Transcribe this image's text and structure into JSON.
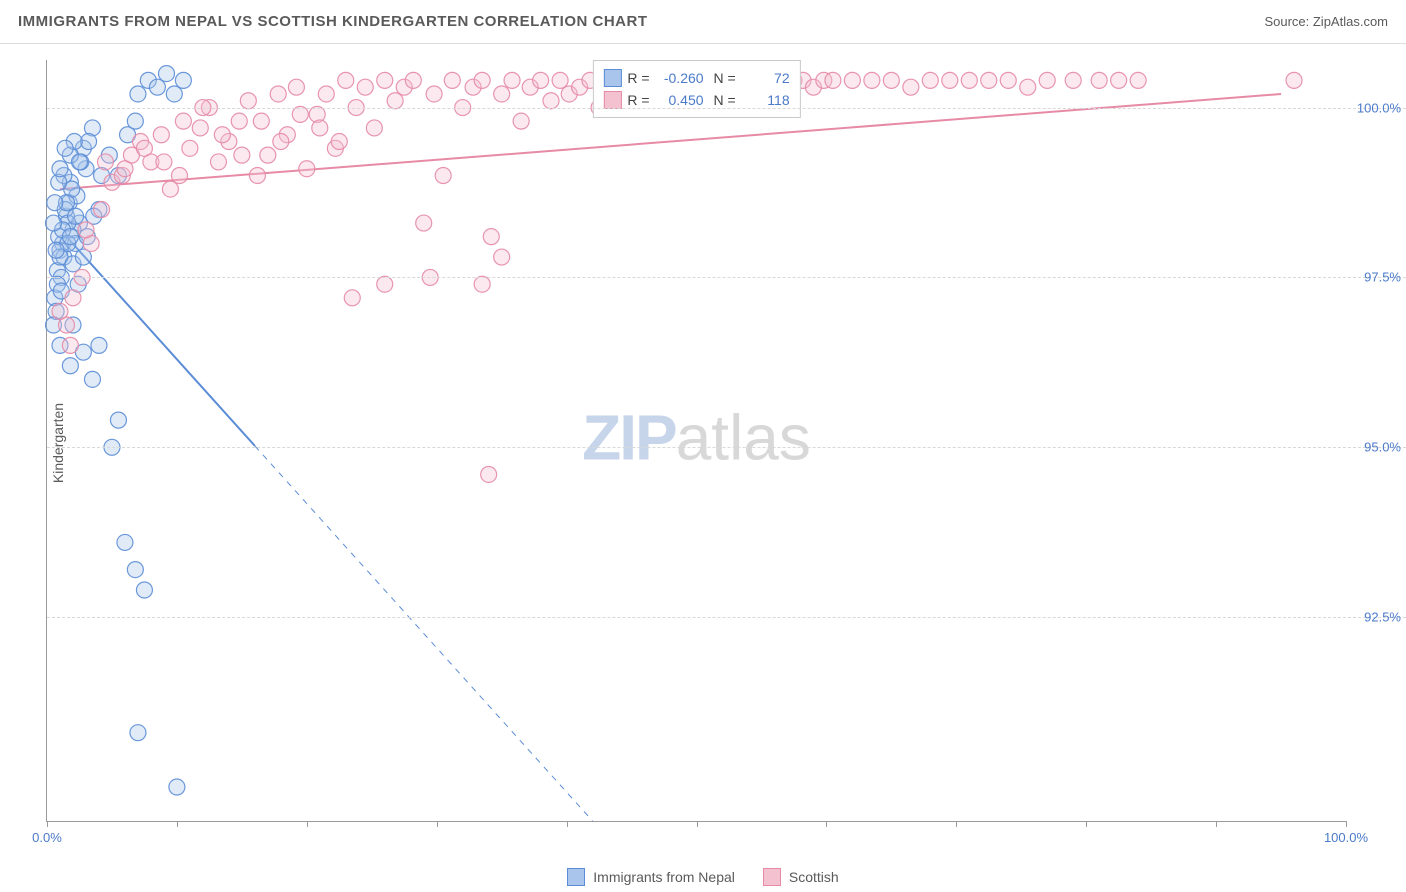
{
  "header": {
    "title": "IMMIGRANTS FROM NEPAL VS SCOTTISH KINDERGARTEN CORRELATION CHART",
    "source_label": "Source: ZipAtlas.com"
  },
  "watermark": {
    "zip": "ZIP",
    "atlas": "atlas"
  },
  "chart": {
    "type": "scatter",
    "background_color": "#ffffff",
    "grid_color": "#d8d8d8",
    "axis_color": "#9a9a9a",
    "tick_label_color": "#4a7ac8",
    "axis_title_color": "#5a5a5a",
    "y_axis_title": "Kindergarten",
    "xlim": [
      0,
      100
    ],
    "ylim": [
      89.5,
      100.7
    ],
    "x_ticks": [
      0,
      10,
      20,
      30,
      40,
      50,
      60,
      70,
      80,
      90,
      100
    ],
    "x_tick_labels": {
      "0": "0.0%",
      "100": "100.0%"
    },
    "y_gridlines": [
      92.5,
      95.0,
      97.5,
      100.0
    ],
    "y_tick_labels": [
      "92.5%",
      "95.0%",
      "97.5%",
      "100.0%"
    ],
    "marker_radius": 8,
    "marker_fill_opacity": 0.35,
    "marker_stroke_opacity": 0.9,
    "marker_stroke_width": 1.2,
    "trend_line_width": 2,
    "trend_dash": "6 6",
    "series": {
      "nepal": {
        "label": "Immigrants from Nepal",
        "color": "#5b8dd6",
        "fill": "#a9c5ec",
        "R": "-0.260",
        "N": "72",
        "trend": {
          "x1": 1.5,
          "y1": 98.1,
          "x2": 42,
          "y2": 89.5,
          "solid_until_x": 16
        },
        "points": [
          [
            1.2,
            98.0
          ],
          [
            1.5,
            98.4
          ],
          [
            1.0,
            97.9
          ],
          [
            2.5,
            98.3
          ],
          [
            0.8,
            97.6
          ],
          [
            1.7,
            98.6
          ],
          [
            1.3,
            97.8
          ],
          [
            2.0,
            98.2
          ],
          [
            0.9,
            98.1
          ],
          [
            1.8,
            98.9
          ],
          [
            3.0,
            99.1
          ],
          [
            2.2,
            98.0
          ],
          [
            0.6,
            97.2
          ],
          [
            1.4,
            98.5
          ],
          [
            2.8,
            99.4
          ],
          [
            3.5,
            99.7
          ],
          [
            4.2,
            99.0
          ],
          [
            1.1,
            97.5
          ],
          [
            1.6,
            98.3
          ],
          [
            2.3,
            98.7
          ],
          [
            0.7,
            97.0
          ],
          [
            1.9,
            98.8
          ],
          [
            2.6,
            99.2
          ],
          [
            3.2,
            99.5
          ],
          [
            4.0,
            98.5
          ],
          [
            4.8,
            99.3
          ],
          [
            5.5,
            99.0
          ],
          [
            6.2,
            99.6
          ],
          [
            7.0,
            100.2
          ],
          [
            7.8,
            100.4
          ],
          [
            8.5,
            100.3
          ],
          [
            9.2,
            100.5
          ],
          [
            9.8,
            100.2
          ],
          [
            10.5,
            100.4
          ],
          [
            6.8,
            99.8
          ],
          [
            2.0,
            96.8
          ],
          [
            2.8,
            96.4
          ],
          [
            3.5,
            96.0
          ],
          [
            1.0,
            96.5
          ],
          [
            1.8,
            96.2
          ],
          [
            5.0,
            95.0
          ],
          [
            5.5,
            95.4
          ],
          [
            4.0,
            96.5
          ],
          [
            6.0,
            93.6
          ],
          [
            6.8,
            93.2
          ],
          [
            7.5,
            92.9
          ],
          [
            7.0,
            90.8
          ],
          [
            10.0,
            90.0
          ],
          [
            0.5,
            96.8
          ],
          [
            0.8,
            97.4
          ],
          [
            1.2,
            98.2
          ],
          [
            1.5,
            98.6
          ],
          [
            1.0,
            97.8
          ],
          [
            1.3,
            99.0
          ],
          [
            1.8,
            99.3
          ],
          [
            2.1,
            99.5
          ],
          [
            2.5,
            99.2
          ],
          [
            0.9,
            98.9
          ],
          [
            1.6,
            98.0
          ],
          [
            2.0,
            97.7
          ],
          [
            1.1,
            97.3
          ],
          [
            0.7,
            97.9
          ],
          [
            2.4,
            97.4
          ],
          [
            2.8,
            97.8
          ],
          [
            3.1,
            98.1
          ],
          [
            3.6,
            98.4
          ],
          [
            0.5,
            98.3
          ],
          [
            0.6,
            98.6
          ],
          [
            1.0,
            99.1
          ],
          [
            1.4,
            99.4
          ],
          [
            1.8,
            98.1
          ],
          [
            2.2,
            98.4
          ]
        ]
      },
      "scottish": {
        "label": "Scottish",
        "color": "#e68aa6",
        "fill": "#f4c1d1",
        "R": "0.450",
        "N": "118",
        "trend": {
          "x1": 1,
          "y1": 98.8,
          "x2": 95,
          "y2": 100.2,
          "solid_until_x": 95
        },
        "points": [
          [
            1.5,
            96.8
          ],
          [
            2.0,
            97.2
          ],
          [
            2.7,
            97.5
          ],
          [
            3.4,
            98.0
          ],
          [
            4.2,
            98.5
          ],
          [
            5.0,
            98.9
          ],
          [
            5.8,
            99.0
          ],
          [
            6.5,
            99.3
          ],
          [
            7.2,
            99.5
          ],
          [
            8.0,
            99.2
          ],
          [
            8.8,
            99.6
          ],
          [
            9.5,
            98.8
          ],
          [
            10.2,
            99.0
          ],
          [
            11.0,
            99.4
          ],
          [
            11.8,
            99.7
          ],
          [
            12.5,
            100.0
          ],
          [
            13.2,
            99.2
          ],
          [
            14.0,
            99.5
          ],
          [
            14.8,
            99.8
          ],
          [
            15.5,
            100.1
          ],
          [
            16.2,
            99.0
          ],
          [
            17.0,
            99.3
          ],
          [
            17.8,
            100.2
          ],
          [
            18.5,
            99.6
          ],
          [
            19.2,
            100.3
          ],
          [
            20.0,
            99.1
          ],
          [
            20.8,
            99.9
          ],
          [
            21.5,
            100.2
          ],
          [
            22.2,
            99.4
          ],
          [
            23.0,
            100.4
          ],
          [
            23.8,
            100.0
          ],
          [
            24.5,
            100.3
          ],
          [
            25.2,
            99.7
          ],
          [
            26.0,
            100.4
          ],
          [
            26.8,
            100.1
          ],
          [
            27.5,
            100.3
          ],
          [
            28.2,
            100.4
          ],
          [
            29.0,
            98.3
          ],
          [
            29.8,
            100.2
          ],
          [
            30.5,
            99.0
          ],
          [
            31.2,
            100.4
          ],
          [
            32.0,
            100.0
          ],
          [
            32.8,
            100.3
          ],
          [
            33.5,
            100.4
          ],
          [
            34.2,
            98.1
          ],
          [
            35.0,
            100.2
          ],
          [
            35.8,
            100.4
          ],
          [
            36.5,
            99.8
          ],
          [
            37.2,
            100.3
          ],
          [
            38.0,
            100.4
          ],
          [
            38.8,
            100.1
          ],
          [
            39.5,
            100.4
          ],
          [
            40.2,
            100.2
          ],
          [
            41.0,
            100.3
          ],
          [
            41.8,
            100.4
          ],
          [
            42.5,
            100.0
          ],
          [
            43.2,
            100.4
          ],
          [
            44.0,
            100.3
          ],
          [
            44.8,
            100.4
          ],
          [
            45.5,
            100.2
          ],
          [
            46.2,
            100.4
          ],
          [
            47.0,
            100.3
          ],
          [
            47.8,
            100.4
          ],
          [
            48.5,
            100.4
          ],
          [
            49.2,
            100.2
          ],
          [
            50.0,
            100.4
          ],
          [
            50.8,
            100.3
          ],
          [
            51.5,
            100.4
          ],
          [
            52.2,
            100.4
          ],
          [
            53.0,
            100.2
          ],
          [
            53.8,
            100.4
          ],
          [
            54.5,
            100.3
          ],
          [
            55.2,
            100.4
          ],
          [
            56.0,
            100.4
          ],
          [
            56.8,
            100.3
          ],
          [
            57.5,
            100.4
          ],
          [
            58.2,
            100.4
          ],
          [
            59.0,
            100.3
          ],
          [
            59.8,
            100.4
          ],
          [
            60.5,
            100.4
          ],
          [
            62.0,
            100.4
          ],
          [
            63.5,
            100.4
          ],
          [
            65.0,
            100.4
          ],
          [
            66.5,
            100.3
          ],
          [
            68.0,
            100.4
          ],
          [
            69.5,
            100.4
          ],
          [
            71.0,
            100.4
          ],
          [
            72.5,
            100.4
          ],
          [
            74.0,
            100.4
          ],
          [
            75.5,
            100.3
          ],
          [
            77.0,
            100.4
          ],
          [
            79.0,
            100.4
          ],
          [
            81.0,
            100.4
          ],
          [
            82.5,
            100.4
          ],
          [
            84.0,
            100.4
          ],
          [
            96.0,
            100.4
          ],
          [
            23.5,
            97.2
          ],
          [
            26.0,
            97.4
          ],
          [
            29.5,
            97.5
          ],
          [
            33.5,
            97.4
          ],
          [
            35.0,
            97.8
          ],
          [
            34.0,
            94.6
          ],
          [
            3.0,
            98.2
          ],
          [
            4.5,
            99.2
          ],
          [
            6.0,
            99.1
          ],
          [
            7.5,
            99.4
          ],
          [
            9.0,
            99.2
          ],
          [
            10.5,
            99.8
          ],
          [
            12.0,
            100.0
          ],
          [
            13.5,
            99.6
          ],
          [
            15.0,
            99.3
          ],
          [
            16.5,
            99.8
          ],
          [
            18.0,
            99.5
          ],
          [
            19.5,
            99.9
          ],
          [
            21.0,
            99.7
          ],
          [
            22.5,
            99.5
          ],
          [
            1.0,
            97.0
          ],
          [
            1.8,
            96.5
          ]
        ]
      }
    }
  },
  "footer_legend": {
    "items": [
      {
        "key": "nepal"
      },
      {
        "key": "scottish"
      }
    ]
  }
}
